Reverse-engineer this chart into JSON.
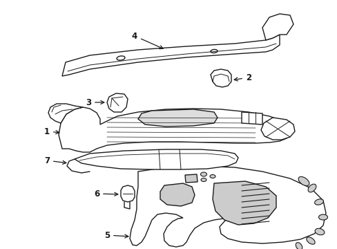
{
  "background_color": "#ffffff",
  "line_color": "#1a1a1a",
  "line_width": 1.0,
  "fig_width": 4.89,
  "fig_height": 3.6,
  "dpi": 100,
  "font_size": 8.5
}
